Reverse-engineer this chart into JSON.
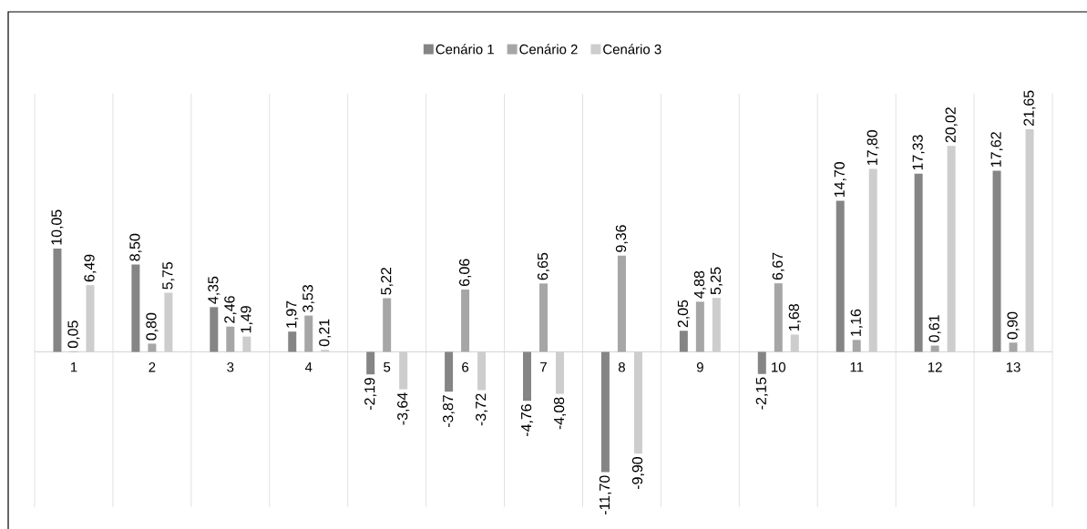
{
  "chart_data": {
    "type": "bar",
    "categories": [
      "1",
      "2",
      "3",
      "4",
      "5",
      "6",
      "7",
      "8",
      "9",
      "10",
      "11",
      "12",
      "13"
    ],
    "series": [
      {
        "name": "Cenário 1",
        "color": "#858585",
        "values": [
          10.05,
          8.5,
          4.35,
          1.97,
          -2.19,
          -3.87,
          -4.76,
          -11.7,
          2.05,
          -2.15,
          14.7,
          17.33,
          17.62
        ],
        "value_labels": [
          "10,05",
          "8,50",
          "4,35",
          "1,97",
          "-2,19",
          "-3,87",
          "-4,76",
          "-11,70",
          "2,05",
          "-2,15",
          "14,70",
          "17,33",
          "17,62"
        ]
      },
      {
        "name": "Cenário 2",
        "color": "#a6a6a6",
        "values": [
          0.05,
          0.8,
          2.46,
          3.53,
          5.22,
          6.06,
          6.65,
          9.36,
          4.88,
          6.67,
          1.16,
          0.61,
          0.9
        ],
        "value_labels": [
          "0,05",
          "0,80",
          "2,46",
          "3,53",
          "5,22",
          "6,06",
          "6,65",
          "9,36",
          "4,88",
          "6,67",
          "1,16",
          "0,61",
          "0,90"
        ]
      },
      {
        "name": "Cenário 3",
        "color": "#cdcdcd",
        "values": [
          6.49,
          5.75,
          1.49,
          0.21,
          -3.64,
          -3.72,
          -4.08,
          -9.9,
          5.25,
          1.68,
          17.8,
          20.02,
          21.65
        ],
        "value_labels": [
          "6,49",
          "5,75",
          "1,49",
          "0,21",
          "-3,64",
          "-3,72",
          "-4,08",
          "-9,90",
          "5,25",
          "1,68",
          "17,80",
          "20,02",
          "21,65"
        ]
      }
    ],
    "ylim": [
      -15.1,
      25.1
    ],
    "grid": "x",
    "legend": "top"
  }
}
